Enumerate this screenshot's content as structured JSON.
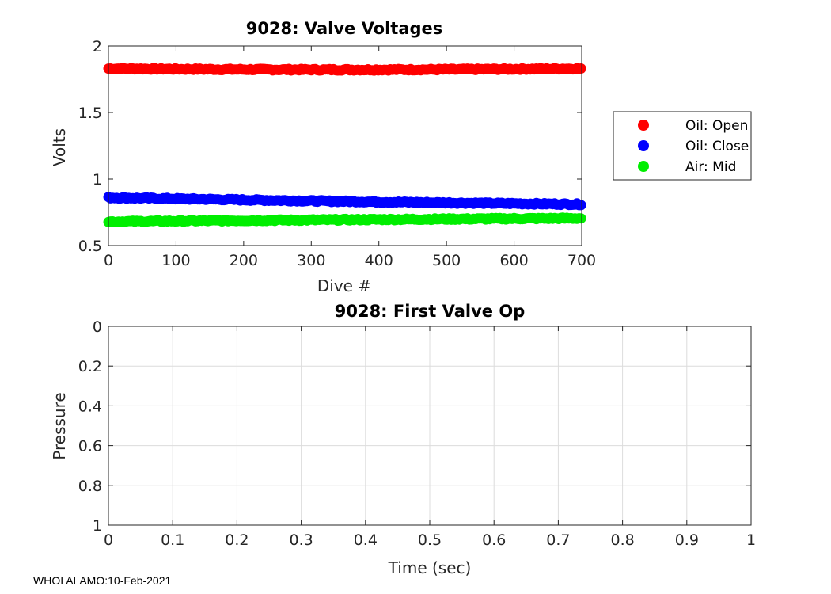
{
  "chart_data": [
    {
      "type": "scatter",
      "title": "9028: Valve Voltages",
      "xlabel": "Dive #",
      "ylabel": "Volts",
      "xlim": [
        0,
        700
      ],
      "ylim": [
        0.5,
        2
      ],
      "xticks": [
        0,
        100,
        200,
        300,
        400,
        500,
        600,
        700
      ],
      "yticks": [
        0.5,
        1,
        1.5,
        2
      ],
      "xtick_labels": [
        "0",
        "100",
        "200",
        "300",
        "400",
        "500",
        "600",
        "700"
      ],
      "ytick_labels": [
        "0.5",
        "1",
        "1.5",
        "2"
      ],
      "grid": false,
      "legend_position": "right-outside",
      "series": [
        {
          "name": "Oil: Open",
          "color": "#ff0000",
          "start": 1.83,
          "end": 1.83,
          "mid_dip": 1.815
        },
        {
          "name": "Oil: Close",
          "color": "#0000ff",
          "start": 0.86,
          "end": 0.81,
          "mid_dip": 0.83
        },
        {
          "name": "Air: Mid",
          "color": "#00ee00",
          "start": 0.68,
          "end": 0.705,
          "mid_dip": 0.695
        }
      ],
      "n_points": 700
    },
    {
      "type": "line",
      "title": "9028: First Valve Op",
      "xlabel": "Time (sec)",
      "ylabel": "Pressure",
      "xlim": [
        0,
        1
      ],
      "ylim": [
        0,
        1
      ],
      "y_reversed": true,
      "xticks": [
        0,
        0.1,
        0.2,
        0.3,
        0.4,
        0.5,
        0.6,
        0.7,
        0.8,
        0.9,
        1
      ],
      "yticks": [
        0,
        0.2,
        0.4,
        0.6,
        0.8,
        1
      ],
      "xtick_labels": [
        "0",
        "0.1",
        "0.2",
        "0.3",
        "0.4",
        "0.5",
        "0.6",
        "0.7",
        "0.8",
        "0.9",
        "1"
      ],
      "ytick_labels": [
        "0",
        "0.2",
        "0.4",
        "0.6",
        "0.8",
        "1"
      ],
      "grid": true,
      "series": []
    }
  ],
  "footer": "WHOI ALAMO:10-Feb-2021"
}
